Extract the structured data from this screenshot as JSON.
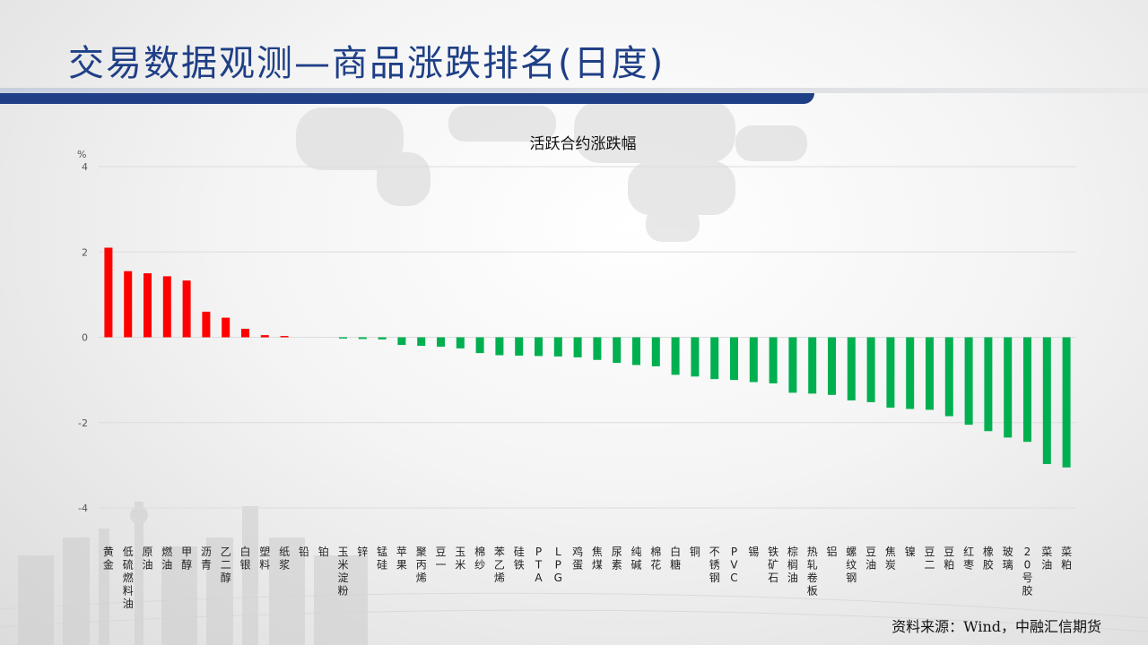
{
  "page": {
    "title": "交易数据观测—商品涨跌排名(日度)",
    "source": "资料来源：Wind，中融汇信期货"
  },
  "colors": {
    "title": "#1f3f86",
    "up": "#ff0000",
    "down": "#00b050"
  },
  "chart_data": {
    "type": "bar",
    "title": "活跃合约涨跌幅",
    "ylabel": "%",
    "ylim": [
      -4,
      4
    ],
    "yticks": [
      4,
      2,
      0,
      -2,
      -4
    ],
    "grid": true,
    "categories": [
      "黄金",
      "低硫燃料油",
      "原油",
      "燃油",
      "甲醇",
      "沥青",
      "乙二醇",
      "白银",
      "塑料",
      "纸浆",
      "铅",
      "铂",
      "玉米淀粉",
      "锌",
      "锰硅",
      "苹果",
      "聚丙烯",
      "豆一",
      "玉米",
      "棉纱",
      "苯乙烯",
      "硅铁",
      "PTA",
      "LPG",
      "鸡蛋",
      "焦煤",
      "尿素",
      "纯碱",
      "棉花",
      "白糖",
      "铜",
      "不锈钢",
      "PVC",
      "锡",
      "铁矿石",
      "棕榈油",
      "热轧卷板",
      "铝",
      "螺纹钢",
      "豆油",
      "焦炭",
      "镍",
      "豆二",
      "豆粕",
      "红枣",
      "橡胶",
      "玻璃",
      "20号胶",
      "菜油",
      "菜粕"
    ],
    "values": [
      2.1,
      1.55,
      1.5,
      1.43,
      1.33,
      0.6,
      0.46,
      0.2,
      0.05,
      0.03,
      0,
      0,
      -0.03,
      -0.04,
      -0.05,
      -0.18,
      -0.2,
      -0.22,
      -0.26,
      -0.37,
      -0.42,
      -0.43,
      -0.44,
      -0.45,
      -0.47,
      -0.53,
      -0.6,
      -0.65,
      -0.68,
      -0.88,
      -0.92,
      -0.98,
      -1.0,
      -1.05,
      -1.08,
      -1.3,
      -1.32,
      -1.35,
      -1.48,
      -1.52,
      -1.65,
      -1.68,
      -1.7,
      -1.85,
      -2.05,
      -2.2,
      -2.35,
      -2.45,
      -2.97,
      -3.05
    ]
  }
}
